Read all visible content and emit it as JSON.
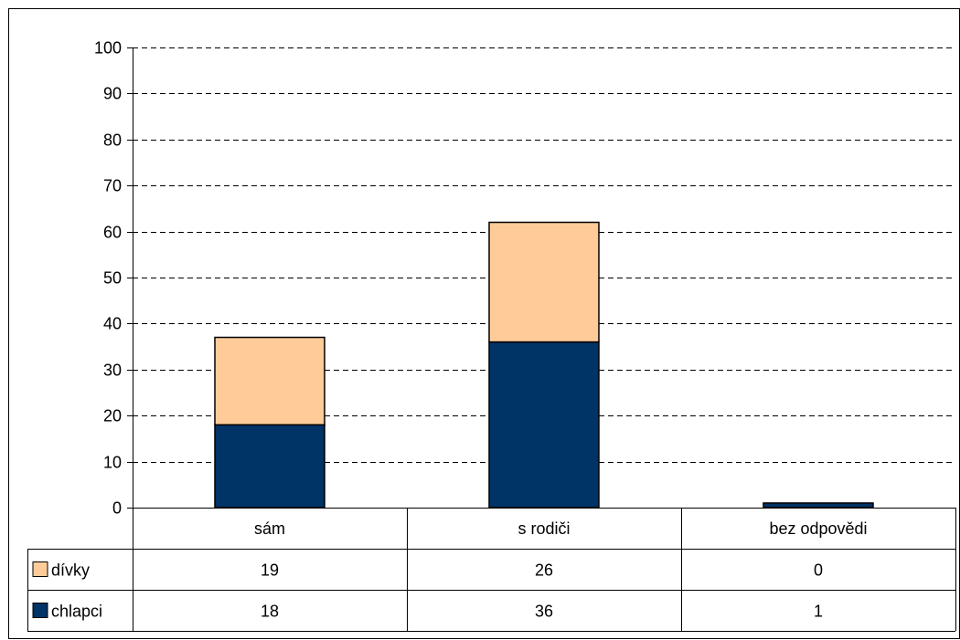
{
  "colors": {
    "divky": "#FFCC99",
    "chlapci": "#003366",
    "background": "#FFFFFF",
    "gridline": "#000000"
  },
  "chart_data": {
    "type": "bar",
    "stacked": true,
    "categories": [
      "sám",
      "s rodiči",
      "bez odpovědi"
    ],
    "series": [
      {
        "name": "chlapci",
        "values": [
          18,
          36,
          1
        ]
      },
      {
        "name": "dívky",
        "values": [
          19,
          26,
          0
        ]
      }
    ],
    "ylim": [
      0,
      100
    ],
    "yticks": [
      0,
      10,
      20,
      30,
      40,
      50,
      60,
      70,
      80,
      90,
      100
    ],
    "grid": "horizontal-dashed",
    "legend": "data-table-left",
    "data_table": {
      "rows": [
        {
          "name": "dívky",
          "values": [
            "19",
            "26",
            "0"
          ]
        },
        {
          "name": "chlapci",
          "values": [
            "18",
            "36",
            "1"
          ]
        }
      ]
    }
  }
}
